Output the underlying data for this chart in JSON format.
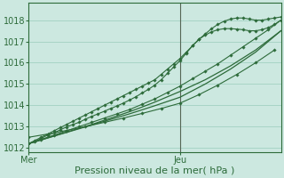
{
  "bg_color": "#cce8e0",
  "plot_bg_color": "#cce8e0",
  "grid_color": "#99ccbb",
  "line_color": "#2d6b3a",
  "marker_color": "#2d6b3a",
  "ylim": [
    1011.8,
    1018.8
  ],
  "yticks": [
    1012,
    1013,
    1014,
    1015,
    1016,
    1017,
    1018
  ],
  "xlabel": "Pression niveau de la mer( hPa )",
  "xlabel_color": "#2d6b3a",
  "tick_color": "#2d6b3a",
  "vline_x": 24,
  "xlim": [
    0,
    40
  ],
  "xtick_positions": [
    0,
    24
  ],
  "xtick_labels": [
    "Mer",
    "Jeu"
  ],
  "lines": [
    {
      "x": [
        0,
        1,
        2,
        3,
        4,
        5,
        6,
        7,
        8,
        9,
        10,
        11,
        12,
        13,
        14,
        15,
        16,
        17,
        18,
        19,
        20,
        21,
        22,
        23,
        24,
        25,
        26,
        27,
        28,
        29,
        30,
        31,
        32,
        33,
        34,
        35,
        36,
        37,
        38,
        39,
        40
      ],
      "y": [
        1012.2,
        1012.35,
        1012.5,
        1012.65,
        1012.8,
        1012.95,
        1013.1,
        1013.25,
        1013.4,
        1013.55,
        1013.7,
        1013.85,
        1014.0,
        1014.15,
        1014.3,
        1014.45,
        1014.6,
        1014.75,
        1014.9,
        1015.05,
        1015.2,
        1015.45,
        1015.7,
        1015.95,
        1016.2,
        1016.5,
        1016.8,
        1017.1,
        1017.35,
        1017.6,
        1017.8,
        1017.95,
        1018.05,
        1018.1,
        1018.1,
        1018.05,
        1018.0,
        1018.0,
        1018.05,
        1018.1,
        1018.15
      ],
      "markers": true
    },
    {
      "x": [
        0,
        1,
        2,
        3,
        4,
        5,
        6,
        7,
        8,
        9,
        10,
        11,
        12,
        13,
        14,
        15,
        16,
        17,
        18,
        19,
        20,
        21,
        22,
        23,
        24,
        25,
        26,
        27,
        28,
        29,
        30,
        31,
        32,
        33,
        34,
        35,
        36,
        37,
        38,
        39,
        40
      ],
      "y": [
        1012.2,
        1012.3,
        1012.45,
        1012.6,
        1012.7,
        1012.85,
        1012.98,
        1013.1,
        1013.2,
        1013.35,
        1013.48,
        1013.6,
        1013.72,
        1013.85,
        1013.97,
        1014.1,
        1014.25,
        1014.4,
        1014.58,
        1014.75,
        1014.95,
        1015.2,
        1015.5,
        1015.8,
        1016.1,
        1016.45,
        1016.8,
        1017.1,
        1017.3,
        1017.45,
        1017.55,
        1017.6,
        1017.6,
        1017.58,
        1017.55,
        1017.5,
        1017.5,
        1017.55,
        1017.65,
        1017.8,
        1018.0
      ],
      "markers": true
    },
    {
      "x": [
        0,
        2,
        4,
        6,
        8,
        10,
        12,
        14,
        16,
        18,
        20,
        22,
        24,
        26,
        28,
        30,
        32,
        34,
        36,
        38,
        40
      ],
      "y": [
        1012.2,
        1012.4,
        1012.6,
        1012.8,
        1013.0,
        1013.2,
        1013.4,
        1013.6,
        1013.8,
        1014.05,
        1014.3,
        1014.6,
        1014.9,
        1015.25,
        1015.6,
        1015.95,
        1016.35,
        1016.75,
        1017.15,
        1017.55,
        1018.0
      ],
      "markers": true
    },
    {
      "x": [
        0,
        2,
        4,
        6,
        8,
        10,
        12,
        14,
        16,
        18,
        20,
        22,
        24,
        28,
        32,
        36,
        40
      ],
      "y": [
        1012.2,
        1012.38,
        1012.56,
        1012.74,
        1012.92,
        1013.1,
        1013.3,
        1013.5,
        1013.7,
        1013.92,
        1014.15,
        1014.4,
        1014.65,
        1015.2,
        1015.85,
        1016.6,
        1017.5
      ],
      "markers": false
    },
    {
      "x": [
        0,
        4,
        8,
        12,
        16,
        20,
        24,
        28,
        32,
        36,
        40
      ],
      "y": [
        1012.2,
        1012.55,
        1012.9,
        1013.25,
        1013.6,
        1013.98,
        1014.38,
        1015.0,
        1015.7,
        1016.5,
        1017.5
      ],
      "markers": false
    },
    {
      "x": [
        0,
        3,
        6,
        9,
        12,
        15,
        18,
        21,
        24,
        27,
        30,
        33,
        36,
        39
      ],
      "y": [
        1012.5,
        1012.65,
        1012.82,
        1013.0,
        1013.2,
        1013.4,
        1013.62,
        1013.85,
        1014.1,
        1014.5,
        1014.95,
        1015.45,
        1016.0,
        1016.6
      ],
      "markers": true
    }
  ],
  "label_fontsize": 8,
  "tick_fontsize": 7
}
